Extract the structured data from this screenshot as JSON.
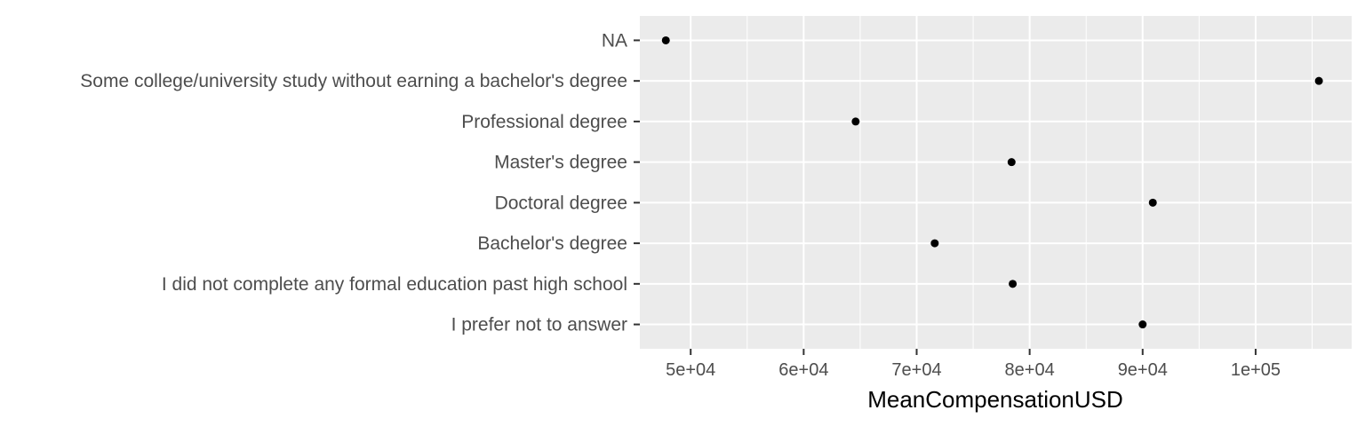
{
  "chart_data": {
    "type": "scatter",
    "title": "",
    "xlabel": "MeanCompensationUSD",
    "ylabel": "",
    "categories": [
      "NA",
      "Some college/university study without earning a bachelor's degree",
      "Professional degree",
      "Master's degree",
      "Doctoral degree",
      "Bachelor's degree",
      "I did not complete any formal education past high school",
      "I prefer not to answer"
    ],
    "values": [
      47800,
      105600,
      64600,
      78400,
      90900,
      71600,
      78500,
      90000
    ],
    "xlim": [
      45500,
      108500
    ],
    "xticks": [
      50000,
      60000,
      70000,
      80000,
      90000,
      100000
    ],
    "xtick_labels": [
      "5e+04",
      "6e+04",
      "7e+04",
      "8e+04",
      "9e+04",
      "1e+05"
    ],
    "grid": true,
    "legend": "none",
    "colors": {
      "panel": "#ebebeb",
      "grid": "#ffffff",
      "point": "#000000",
      "label": "#4d4d4d",
      "tick": "#333333"
    }
  }
}
